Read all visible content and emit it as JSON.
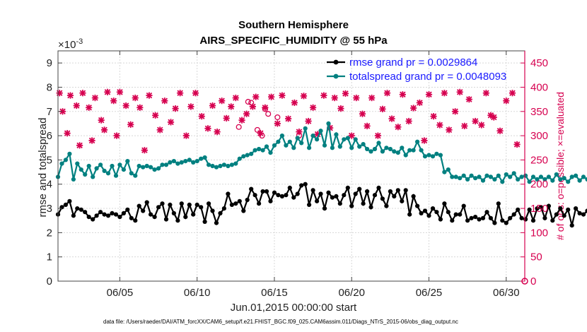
{
  "chart_data": {
    "type": "line",
    "title": "Southern Hemisphere",
    "subtitle": "AIRS_SPECIFIC_HUMIDITY @ 55 hPa",
    "xlabel": "Jun.01,2015 00:00:00 start",
    "ylabel": "rmse and totalspread",
    "y2label": "# of obs: o=possible; ×=evaluated",
    "y_exponent": "×10^-3",
    "y_exponent_base": "×10",
    "y_exponent_power": "-3",
    "footnote": "data file: /Users/raeder/DAI/ATM_forcXX/CAM6_setup/f.e21.FHIST_BGC.f09_025.CAM6assim.011/Diags_NTrS_2015-06/obs_diag_output.nc",
    "xlim": [
      1.0,
      31.2
    ],
    "ylim": [
      0,
      9.5
    ],
    "y2lim": [
      0,
      475
    ],
    "x_ticks": [
      5,
      10,
      15,
      20,
      25,
      30
    ],
    "x_tick_labels": [
      "06/05",
      "06/10",
      "06/15",
      "06/20",
      "06/25",
      "06/30"
    ],
    "y_ticks": [
      "0",
      "1",
      "2",
      "3",
      "4",
      "5",
      "6",
      "7",
      "8",
      "9"
    ],
    "y2_ticks": [
      "0",
      "50",
      "100",
      "150",
      "200",
      "250",
      "300",
      "350",
      "400",
      "450"
    ],
    "legend_position": "top-right",
    "series": [
      {
        "name": "rmse grand pr = 0.0029864",
        "color": "#000000",
        "axis": "left",
        "x_start": 1.0,
        "x_step": 0.25,
        "values": [
          2.75,
          3.05,
          3.15,
          3.3,
          2.7,
          3.0,
          2.95,
          2.85,
          2.65,
          2.55,
          2.7,
          2.85,
          2.75,
          2.7,
          2.8,
          2.75,
          2.65,
          2.8,
          2.95,
          2.6,
          2.5,
          3.1,
          2.9,
          3.25,
          2.75,
          2.65,
          3.05,
          3.2,
          2.55,
          3.15,
          2.8,
          2.5,
          3.2,
          2.65,
          3.15,
          2.75,
          3.15,
          3.05,
          2.45,
          3.2,
          2.9,
          2.4,
          2.8,
          3.0,
          3.6,
          3.15,
          3.2,
          3.3,
          2.9,
          3.35,
          3.8,
          3.55,
          3.2,
          3.7,
          3.7,
          3.3,
          3.65,
          3.55,
          3.5,
          3.55,
          3.85,
          3.45,
          3.6,
          3.95,
          4.0,
          3.15,
          3.75,
          3.3,
          3.6,
          3.0,
          3.65,
          3.45,
          3.5,
          3.2,
          3.55,
          3.85,
          3.1,
          3.6,
          3.8,
          3.2,
          3.7,
          3.05,
          3.55,
          3.85,
          3.4,
          3.1,
          3.7,
          3.5,
          3.75,
          3.3,
          3.75,
          2.75,
          3.5,
          3.1,
          2.8,
          2.9,
          2.7,
          3.0,
          2.85,
          2.55,
          3.2,
          2.85,
          2.5,
          2.75,
          2.75,
          3.1,
          2.5,
          2.6,
          2.65,
          2.55,
          2.6,
          2.85,
          2.6,
          2.4,
          3.2,
          2.5,
          2.4,
          2.6,
          2.75,
          2.95,
          2.6,
          2.55,
          2.95,
          2.5,
          3.0,
          3.05,
          2.6,
          3.1,
          2.5,
          2.75,
          3.0,
          2.7,
          2.95,
          2.3,
          3.0,
          2.8,
          2.75,
          2.9,
          3.1,
          2.55,
          2.9,
          3.0,
          3.1,
          2.95,
          2.3,
          2.85,
          3.05,
          2.65,
          2.45,
          3.0,
          2.75,
          2.95,
          2.6,
          2.45,
          3.05
        ],
        "x_end": 30.8
      },
      {
        "name": "totalspread grand pr = 0.0048093",
        "color": "#008080",
        "axis": "left",
        "x_start": 1.0,
        "x_step": 0.25,
        "values": [
          4.3,
          4.85,
          5.0,
          5.25,
          4.2,
          4.85,
          4.6,
          4.4,
          4.75,
          4.3,
          4.65,
          4.8,
          4.55,
          4.45,
          4.75,
          4.35,
          4.8,
          4.6,
          4.95,
          4.45,
          4.35,
          4.75,
          4.7,
          4.75,
          4.7,
          4.6,
          4.65,
          4.8,
          4.8,
          4.9,
          4.95,
          4.85,
          4.9,
          4.95,
          5.0,
          4.9,
          4.95,
          5.05,
          5.1,
          4.8,
          4.75,
          4.7,
          4.75,
          4.8,
          4.75,
          4.8,
          4.85,
          5.05,
          5.15,
          5.2,
          5.25,
          5.4,
          5.45,
          5.4,
          5.55,
          5.3,
          5.6,
          5.75,
          6.0,
          5.6,
          5.75,
          5.5,
          5.9,
          5.7,
          6.3,
          5.5,
          6.0,
          5.85,
          6.2,
          5.6,
          6.5,
          5.5,
          6.05,
          5.55,
          5.85,
          5.9,
          5.5,
          5.85,
          5.55,
          5.65,
          5.45,
          5.35,
          5.45,
          5.7,
          5.35,
          5.5,
          5.45,
          5.35,
          5.3,
          5.5,
          5.2,
          5.4,
          5.4,
          5.75,
          5.4,
          5.15,
          5.2,
          5.15,
          5.25,
          5.2,
          4.5,
          4.6,
          4.3,
          4.3,
          4.25,
          4.35,
          4.2,
          4.35,
          4.25,
          4.3,
          4.15,
          4.35,
          4.3,
          4.2,
          4.35,
          4.1,
          4.4,
          4.3,
          4.45,
          4.2,
          4.3,
          4.35,
          4.1,
          4.3,
          4.2,
          4.3,
          4.2,
          4.3,
          4.15,
          4.4,
          4.2,
          4.25,
          4.1,
          4.3,
          4.35,
          4.15,
          4.3,
          4.2,
          4.15,
          4.35,
          4.25,
          4.3,
          4.1,
          4.35,
          4.4,
          4.25,
          4.15,
          4.3,
          4.3,
          4.45,
          4.2,
          4.5,
          4.1,
          4.2
        ],
        "x_end": 30.8
      }
    ],
    "obs_possible": {
      "name": "possible",
      "marker": "o",
      "color": "#d6004f",
      "axis": "right",
      "points": [
        [
          12.7,
          318
        ],
        [
          13.3,
          370
        ],
        [
          13.5,
          368
        ],
        [
          14.4,
          355
        ],
        [
          14.6,
          345
        ],
        [
          14.2,
          300
        ],
        [
          13.9,
          312
        ],
        [
          15.2,
          338
        ],
        [
          16.6,
          300
        ]
      ]
    },
    "obs_evaluated": {
      "name": "evaluated",
      "marker": "x",
      "color": "#d6004f",
      "axis": "right",
      "points": [
        [
          1.1,
          388
        ],
        [
          1.3,
          350
        ],
        [
          1.6,
          305
        ],
        [
          1.8,
          383
        ],
        [
          2.2,
          362
        ],
        [
          2.4,
          280
        ],
        [
          2.6,
          388
        ],
        [
          3.0,
          358
        ],
        [
          3.2,
          290
        ],
        [
          3.4,
          378
        ],
        [
          3.8,
          332
        ],
        [
          4.0,
          312
        ],
        [
          4.2,
          390
        ],
        [
          4.6,
          372
        ],
        [
          4.8,
          300
        ],
        [
          5.0,
          390
        ],
        [
          5.4,
          362
        ],
        [
          5.7,
          323
        ],
        [
          6.0,
          378
        ],
        [
          6.3,
          358
        ],
        [
          6.6,
          270
        ],
        [
          6.9,
          383
        ],
        [
          7.3,
          342
        ],
        [
          7.6,
          312
        ],
        [
          7.9,
          372
        ],
        [
          8.3,
          328
        ],
        [
          8.6,
          356
        ],
        [
          8.9,
          388
        ],
        [
          9.3,
          300
        ],
        [
          9.6,
          360
        ],
        [
          9.9,
          388
        ],
        [
          10.3,
          340
        ],
        [
          10.7,
          315
        ],
        [
          11.0,
          362
        ],
        [
          11.3,
          308
        ],
        [
          11.6,
          372
        ],
        [
          11.9,
          336
        ],
        [
          12.2,
          360
        ],
        [
          12.5,
          378
        ],
        [
          12.9,
          332
        ],
        [
          13.2,
          345
        ],
        [
          13.6,
          360
        ],
        [
          13.8,
          380
        ],
        [
          14.1,
          305
        ],
        [
          14.4,
          358
        ],
        [
          14.8,
          380
        ],
        [
          15.2,
          325
        ],
        [
          15.5,
          383
        ],
        [
          15.9,
          335
        ],
        [
          16.3,
          368
        ],
        [
          16.6,
          308
        ],
        [
          16.9,
          382
        ],
        [
          17.2,
          330
        ],
        [
          17.5,
          358
        ],
        [
          17.8,
          303
        ],
        [
          18.2,
          383
        ],
        [
          18.6,
          316
        ],
        [
          18.9,
          378
        ],
        [
          19.3,
          356
        ],
        [
          19.6,
          387
        ],
        [
          20.0,
          300
        ],
        [
          20.3,
          378
        ],
        [
          20.7,
          345
        ],
        [
          21.0,
          320
        ],
        [
          21.3,
          378
        ],
        [
          21.7,
          300
        ],
        [
          22.0,
          355
        ],
        [
          22.3,
          388
        ],
        [
          22.6,
          335
        ],
        [
          23.0,
          318
        ],
        [
          23.3,
          385
        ],
        [
          23.7,
          330
        ],
        [
          24.0,
          357
        ],
        [
          24.4,
          368
        ],
        [
          24.7,
          290
        ],
        [
          25.0,
          385
        ],
        [
          25.3,
          340
        ],
        [
          25.7,
          322
        ],
        [
          26.0,
          388
        ],
        [
          26.3,
          312
        ],
        [
          26.7,
          350
        ],
        [
          27.0,
          390
        ],
        [
          27.3,
          320
        ],
        [
          27.6,
          375
        ],
        [
          28.0,
          330
        ],
        [
          28.4,
          322
        ],
        [
          28.7,
          388
        ],
        [
          29.0,
          342
        ],
        [
          29.2,
          338
        ],
        [
          29.6,
          310
        ],
        [
          30.0,
          372
        ],
        [
          30.4,
          388
        ],
        [
          30.7,
          282
        ]
      ]
    }
  }
}
